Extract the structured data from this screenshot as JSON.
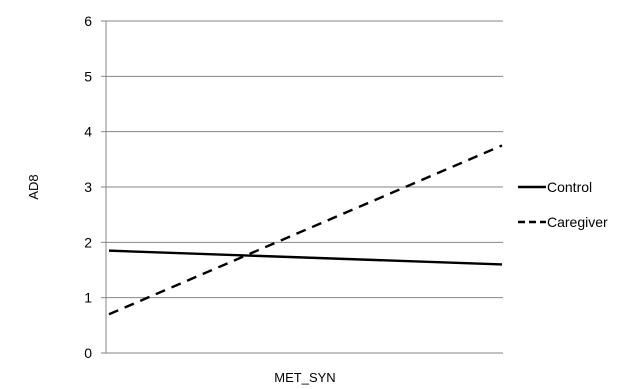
{
  "chart_data": {
    "type": "line",
    "title": "",
    "xlabel": "MET_SYN",
    "ylabel": "AD8",
    "ylim": [
      0,
      6
    ],
    "yticks": [
      0,
      1,
      2,
      3,
      4,
      5,
      6
    ],
    "grid": "horizontal",
    "legend": "right",
    "series": [
      {
        "name": "Control",
        "x": [
          0,
          1
        ],
        "values": [
          1.85,
          1.6
        ],
        "style": "solid",
        "color": "#000000"
      },
      {
        "name": "Caregiver",
        "x": [
          0,
          1
        ],
        "values": [
          0.7,
          3.75
        ],
        "style": "dashed",
        "color": "#000000"
      }
    ]
  }
}
